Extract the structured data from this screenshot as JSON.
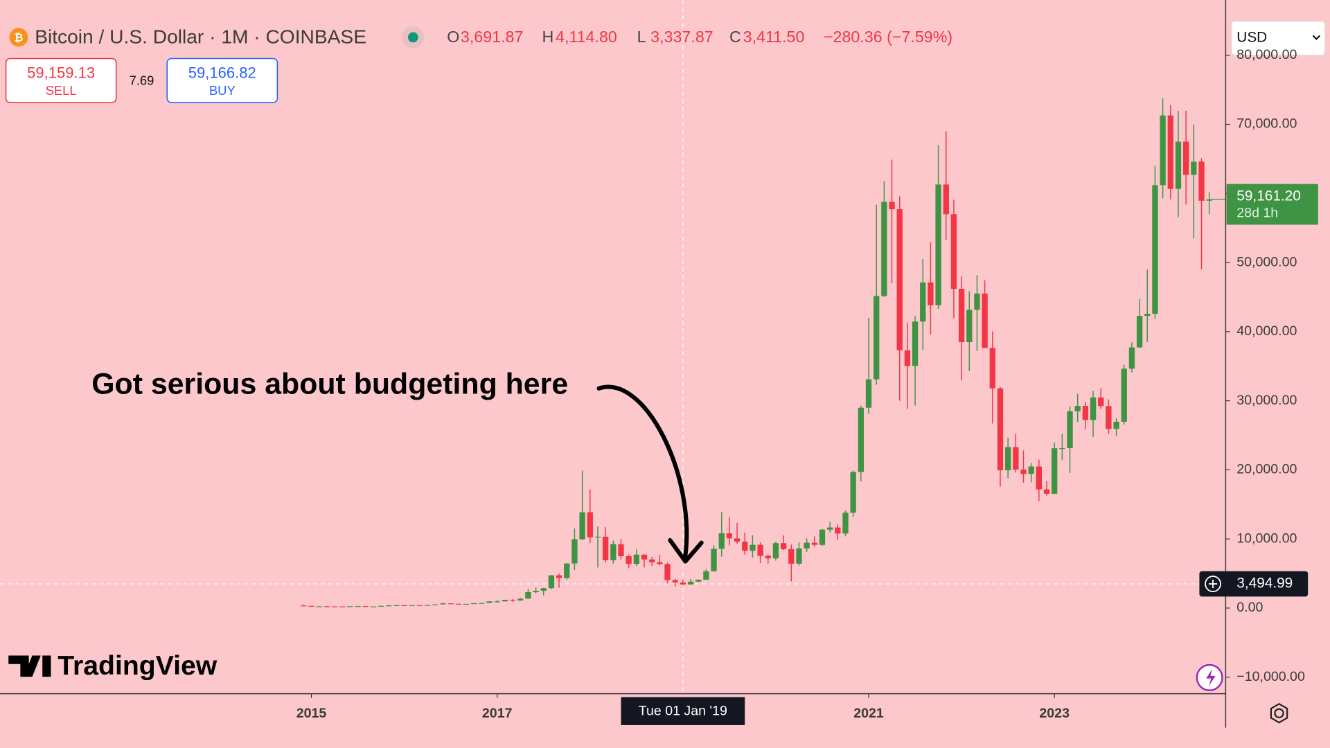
{
  "header": {
    "symbol": "Bitcoin / U.S. Dollar · 1M · COINBASE",
    "ohlc": [
      {
        "label": "O",
        "value": "3,691.87"
      },
      {
        "label": "H",
        "value": "4,114.80"
      },
      {
        "label": "L",
        "value": "3,337.87"
      },
      {
        "label": "C",
        "value": "3,411.50"
      }
    ],
    "change": "−280.36 (−7.59%)",
    "sell": {
      "price": "59,159.13",
      "label": "SELL"
    },
    "spread": "7.69",
    "buy": {
      "price": "59,166.82",
      "label": "BUY"
    },
    "currency": "USD",
    "logo": "TradingView"
  },
  "chart_data": {
    "type": "candlestick",
    "annotation": "Got serious about budgeting here",
    "up_color": "#3f9443",
    "down_color": "#f23645",
    "x": [
      "2014-12",
      "2015-01",
      "2015-02",
      "2015-03",
      "2015-04",
      "2015-05",
      "2015-06",
      "2015-07",
      "2015-08",
      "2015-09",
      "2015-10",
      "2015-11",
      "2015-12",
      "2016-01",
      "2016-02",
      "2016-03",
      "2016-04",
      "2016-05",
      "2016-06",
      "2016-07",
      "2016-08",
      "2016-09",
      "2016-10",
      "2016-11",
      "2016-12",
      "2017-01",
      "2017-02",
      "2017-03",
      "2017-04",
      "2017-05",
      "2017-06",
      "2017-07",
      "2017-08",
      "2017-09",
      "2017-10",
      "2017-11",
      "2017-12",
      "2018-01",
      "2018-02",
      "2018-03",
      "2018-04",
      "2018-05",
      "2018-06",
      "2018-07",
      "2018-08",
      "2018-09",
      "2018-10",
      "2018-11",
      "2018-12",
      "2019-01",
      "2019-02",
      "2019-03",
      "2019-04",
      "2019-05",
      "2019-06",
      "2019-07",
      "2019-08",
      "2019-09",
      "2019-10",
      "2019-11",
      "2019-12",
      "2020-01",
      "2020-02",
      "2020-03",
      "2020-04",
      "2020-05",
      "2020-06",
      "2020-07",
      "2020-08",
      "2020-09",
      "2020-10",
      "2020-11",
      "2020-12",
      "2021-01",
      "2021-02",
      "2021-03",
      "2021-04",
      "2021-05",
      "2021-06",
      "2021-07",
      "2021-08",
      "2021-09",
      "2021-10",
      "2021-11",
      "2021-12",
      "2022-01",
      "2022-02",
      "2022-03",
      "2022-04",
      "2022-05",
      "2022-06",
      "2022-07",
      "2022-08",
      "2022-09",
      "2022-10",
      "2022-11",
      "2022-12",
      "2023-01",
      "2023-02",
      "2023-03",
      "2023-04",
      "2023-05",
      "2023-06",
      "2023-07",
      "2023-08",
      "2023-09",
      "2023-10",
      "2023-11",
      "2023-12",
      "2024-01",
      "2024-02",
      "2024-03",
      "2024-04",
      "2024-05",
      "2024-06",
      "2024-07",
      "2024-08",
      "2024-09"
    ],
    "open": [
      378,
      320,
      217,
      254,
      244,
      236,
      230,
      263,
      284,
      230,
      236,
      314,
      377,
      430,
      368,
      437,
      416,
      448,
      531,
      673,
      624,
      575,
      609,
      700,
      742,
      963,
      967,
      1190,
      1080,
      1350,
      2300,
      2500,
      2875,
      4740,
      4340,
      6450,
      9950,
      13860,
      10220,
      10330,
      6930,
      9240,
      7500,
      6390,
      7730,
      7030,
      6630,
      6370,
      4040,
      3691.87,
      3411,
      3820,
      4100,
      5320,
      8570,
      10820,
      10080,
      9600,
      8290,
      9150,
      7550,
      7190,
      9390,
      8530,
      6420,
      8630,
      9450,
      9140,
      11350,
      11660,
      10780,
      13800,
      19700,
      28990,
      33110,
      45160,
      58790,
      57720,
      37300,
      35040,
      41460,
      47130,
      43830,
      61300,
      57000,
      46200,
      38480,
      43160,
      45520,
      37640,
      31790,
      19940,
      23290,
      20040,
      19420,
      20490,
      17170,
      16540,
      23130,
      23150,
      28480,
      29250,
      27220,
      30470,
      29230,
      25930,
      26960,
      34640,
      37720,
      42280,
      42580,
      61200,
      71290,
      60670,
      67500,
      62700,
      64600,
      58950
    ],
    "high": [
      455,
      320,
      265,
      300,
      261,
      247,
      267,
      315,
      285,
      247,
      334,
      495,
      465,
      462,
      440,
      440,
      467,
      548,
      780,
      700,
      627,
      628,
      731,
      753,
      975,
      1150,
      1210,
      1290,
      1450,
      2760,
      2980,
      2925,
      4760,
      4980,
      6470,
      11500,
      19890,
      17180,
      11800,
      11700,
      9760,
      9990,
      7750,
      8490,
      7760,
      7410,
      7680,
      6570,
      4240,
      4114.8,
      4200,
      4130,
      5600,
      9070,
      13880,
      13200,
      12330,
      10920,
      10540,
      9510,
      7750,
      9590,
      10520,
      9190,
      9470,
      10080,
      10380,
      11450,
      12480,
      12090,
      14100,
      19920,
      29300,
      41990,
      58350,
      61790,
      64900,
      59600,
      41330,
      42230,
      50500,
      52950,
      67000,
      69000,
      59100,
      47990,
      45850,
      48190,
      47440,
      40030,
      31980,
      24670,
      25200,
      22800,
      21000,
      21480,
      18390,
      23950,
      25250,
      29190,
      31000,
      29820,
      31430,
      31800,
      30200,
      27490,
      35200,
      38450,
      44730,
      48970,
      64000,
      73790,
      72800,
      71950,
      71980,
      70000,
      65100,
      60200
    ],
    "low": [
      310,
      170,
      212,
      235,
      215,
      228,
      218,
      253,
      198,
      226,
      236,
      298,
      350,
      350,
      365,
      402,
      414,
      437,
      526,
      606,
      535,
      570,
      605,
      681,
      740,
      752,
      945,
      890,
      1080,
      1350,
      2100,
      1840,
      2700,
      2950,
      4130,
      5500,
      9800,
      9400,
      5870,
      6580,
      6430,
      7030,
      5760,
      6070,
      5880,
      6110,
      6180,
      3560,
      3130,
      3337.87,
      3390,
      3730,
      4060,
      5330,
      7450,
      9070,
      9320,
      7730,
      7300,
      6520,
      6430,
      6850,
      8420,
      3860,
      6150,
      8120,
      8830,
      8980,
      10950,
      9880,
      10380,
      13220,
      18330,
      28100,
      32300,
      45000,
      47000,
      30000,
      28800,
      29300,
      37330,
      39600,
      43290,
      53260,
      41960,
      32930,
      34300,
      37200,
      37600,
      26700,
      17570,
      18780,
      19600,
      18150,
      18200,
      15480,
      16260,
      16490,
      21400,
      19550,
      26940,
      25800,
      24750,
      28860,
      25200,
      24900,
      26540,
      34100,
      37600,
      38500,
      41880,
      59300,
      59150,
      56550,
      58400,
      53500,
      49000,
      57000
    ],
    "close": [
      320,
      217,
      254,
      244,
      236,
      230,
      263,
      284,
      230,
      236,
      314,
      377,
      430,
      368,
      437,
      416,
      448,
      531,
      673,
      624,
      575,
      609,
      700,
      742,
      963,
      967,
      1190,
      1080,
      1350,
      2300,
      2500,
      2875,
      4740,
      4340,
      6450,
      9950,
      13860,
      10220,
      10330,
      6930,
      9240,
      7500,
      6390,
      7730,
      7030,
      6630,
      6370,
      4040,
      3691.87,
      3411.5,
      3820,
      4100,
      5320,
      8570,
      10820,
      10080,
      9600,
      8290,
      9150,
      7550,
      7190,
      9390,
      8530,
      6420,
      8630,
      9450,
      9140,
      11350,
      11660,
      10780,
      13800,
      19700,
      28990,
      33110,
      45160,
      58790,
      57720,
      37300,
      35040,
      41460,
      47130,
      43830,
      61300,
      57000,
      46200,
      38480,
      43160,
      45520,
      37640,
      31790,
      19940,
      23290,
      20040,
      19420,
      20490,
      17170,
      16540,
      23130,
      23150,
      28480,
      29250,
      27220,
      30470,
      29230,
      25930,
      26960,
      34640,
      37720,
      42280,
      42580,
      61200,
      71290,
      60670,
      67500,
      62700,
      64600,
      58950,
      59161.2
    ],
    "ylim": [
      -12400,
      88000
    ],
    "yticks": [
      {
        "value": -10000,
        "label": "−10,000.00"
      },
      {
        "value": 0,
        "label": "0.00"
      },
      {
        "value": 10000,
        "label": "10,000.00"
      },
      {
        "value": 20000,
        "label": "20,000.00"
      },
      {
        "value": 30000,
        "label": "30,000.00"
      },
      {
        "value": 40000,
        "label": "40,000.00"
      },
      {
        "value": 50000,
        "label": "50,000.00"
      },
      {
        "value": 60000,
        "label": "60,000.00"
      },
      {
        "value": 70000,
        "label": "70,000.00"
      },
      {
        "value": 80000,
        "label": "80,000.00"
      }
    ],
    "xticks": [
      {
        "value": "2015-01",
        "label": "2015"
      },
      {
        "value": "2017-01",
        "label": "2017"
      },
      {
        "value": "2021-01",
        "label": "2021"
      },
      {
        "value": "2023-01",
        "label": "2023"
      }
    ],
    "crosshair": {
      "x": {
        "value": "2019-01",
        "label": "Tue 01 Jan '19"
      },
      "y": {
        "value": 3494.99,
        "label": "3,494.99"
      }
    },
    "last_price": {
      "value": 59161.2,
      "label": "59,161.20",
      "countdown": "28d 1h"
    }
  }
}
